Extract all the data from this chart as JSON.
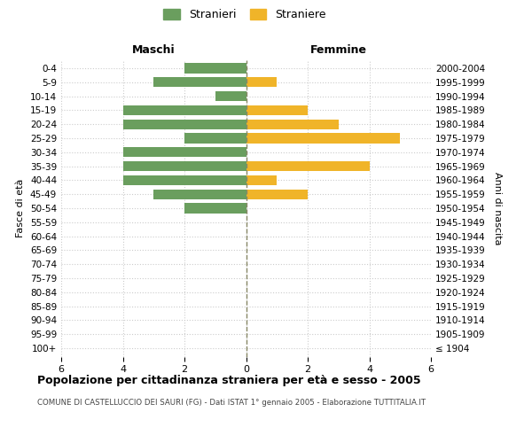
{
  "age_groups": [
    "100+",
    "95-99",
    "90-94",
    "85-89",
    "80-84",
    "75-79",
    "70-74",
    "65-69",
    "60-64",
    "55-59",
    "50-54",
    "45-49",
    "40-44",
    "35-39",
    "30-34",
    "25-29",
    "20-24",
    "15-19",
    "10-14",
    "5-9",
    "0-4"
  ],
  "birth_years": [
    "≤ 1904",
    "1905-1909",
    "1910-1914",
    "1915-1919",
    "1920-1924",
    "1925-1929",
    "1930-1934",
    "1935-1939",
    "1940-1944",
    "1945-1949",
    "1950-1954",
    "1955-1959",
    "1960-1964",
    "1965-1969",
    "1970-1974",
    "1975-1979",
    "1980-1984",
    "1985-1989",
    "1990-1994",
    "1995-1999",
    "2000-2004"
  ],
  "males": [
    0,
    0,
    0,
    0,
    0,
    0,
    0,
    0,
    0,
    0,
    2,
    3,
    4,
    4,
    4,
    2,
    4,
    4,
    1,
    3,
    2
  ],
  "females": [
    0,
    0,
    0,
    0,
    0,
    0,
    0,
    0,
    0,
    0,
    0,
    2,
    1,
    4,
    0,
    5,
    3,
    2,
    0,
    1,
    0
  ],
  "male_color": "#6a9e5e",
  "female_color": "#f0b429",
  "title": "Popolazione per cittadinanza straniera per età e sesso - 2005",
  "subtitle": "COMUNE DI CASTELLUCCIO DEI SAURI (FG) - Dati ISTAT 1° gennaio 2005 - Elaborazione TUTTITALIA.IT",
  "ylabel_left": "Fasce di età",
  "ylabel_right": "Anni di nascita",
  "xlabel_left": "Maschi",
  "xlabel_right": "Femmine",
  "legend_male": "Stranieri",
  "legend_female": "Straniere",
  "xlim": 6,
  "background_color": "#ffffff",
  "grid_color": "#cccccc",
  "center_line_color": "#888866"
}
